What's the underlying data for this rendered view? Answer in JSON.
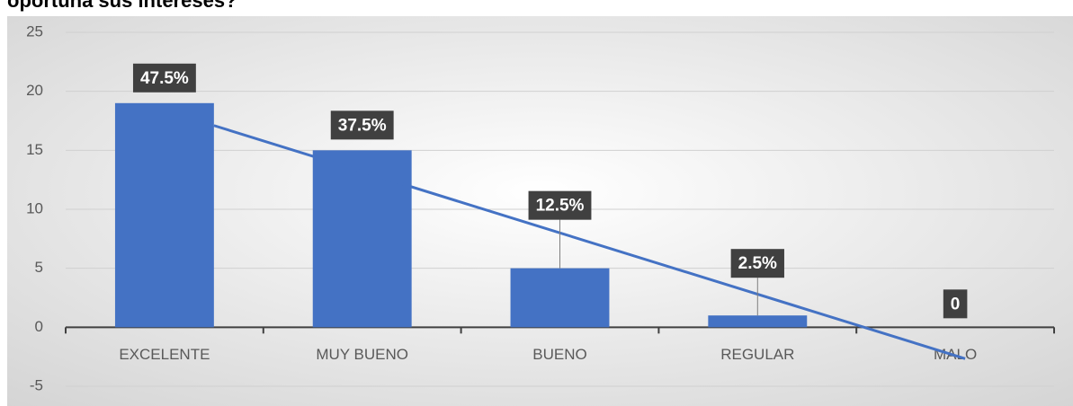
{
  "chart_data": {
    "type": "bar",
    "title": "oportuna sus intereses?",
    "categories": [
      "EXCELENTE",
      "MUY BUENO",
      "BUENO",
      "REGULAR",
      "MALO"
    ],
    "values": [
      19,
      15,
      5,
      1,
      0
    ],
    "annotations": [
      "47.5%",
      "37.5%",
      "12.5%",
      "2.5%",
      "0"
    ],
    "color": "#4472c4",
    "trendline": {
      "type": "linear",
      "color": "#4472c4"
    },
    "ylim": [
      -5,
      25
    ],
    "yticks": [
      -5,
      0,
      5,
      10,
      15,
      20,
      25
    ],
    "grid": true
  }
}
